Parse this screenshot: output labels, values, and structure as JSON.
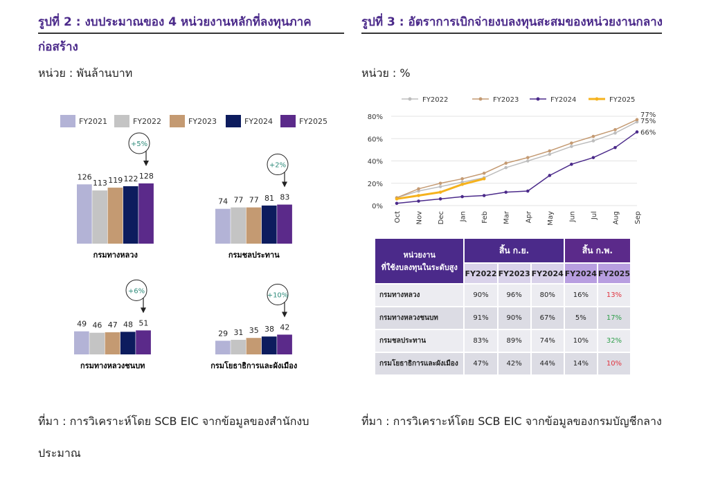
{
  "figure2": {
    "title": "รูปที่ 2 : งบประมาณของ 4 หน่วยงานหลักที่ลงทุนภาคก่อสร้าง",
    "unit": "หน่วย : พันล้านบาท",
    "chart_data": {
      "type": "bar",
      "series": [
        {
          "name": "FY2021",
          "color": "#b3b3d6"
        },
        {
          "name": "FY2022",
          "color": "#c4c4c4"
        },
        {
          "name": "FY2023",
          "color": "#c49a72"
        },
        {
          "name": "FY2024",
          "color": "#0d1c5e"
        },
        {
          "name": "FY2025",
          "color": "#5b2a8a"
        }
      ],
      "panels": [
        {
          "category": "กรมทางหลวง",
          "values": [
            126,
            113,
            119,
            122,
            128
          ],
          "change": "+5%"
        },
        {
          "category": "กรมชลประทาน",
          "values": [
            74,
            77,
            77,
            81,
            83
          ],
          "change": "+2%"
        },
        {
          "category": "กรมทางหลวงชนบท",
          "values": [
            49,
            46,
            47,
            48,
            51
          ],
          "change": "+6%"
        },
        {
          "category": "กรมโยธาธิการและผังเมือง",
          "values": [
            29,
            31,
            35,
            38,
            42
          ],
          "change": "+10%"
        }
      ]
    },
    "source": "ที่มา : การวิเคราะห์โดย SCB EIC จากข้อมูลของสำนักงบประมาณ"
  },
  "figure3": {
    "title": "รูปที่ 3 : อัตราการเบิกจ่ายงบลงทุนสะสมของหน่วยงานกลาง",
    "unit": "หน่วย : %",
    "chart_data": {
      "type": "line",
      "categories": [
        "Oct",
        "Nov",
        "Dec",
        "Jan",
        "Feb",
        "Mar",
        "Apr",
        "May",
        "Jun",
        "Jul",
        "Aug",
        "Sep"
      ],
      "series": [
        {
          "name": "FY2022",
          "color": "#bdbdbd",
          "values": [
            7,
            13,
            17,
            21,
            25,
            34,
            40,
            46,
            53,
            58,
            65,
            75
          ],
          "value_labels": [
            null,
            null,
            null,
            null,
            null,
            null,
            null,
            null,
            null,
            null,
            null,
            "75%"
          ]
        },
        {
          "name": "FY2023",
          "color": "#c49a72",
          "values": [
            7,
            15,
            20,
            24,
            29,
            38,
            43,
            49,
            56,
            62,
            68,
            77
          ],
          "value_labels": [
            null,
            null,
            null,
            null,
            null,
            null,
            null,
            null,
            null,
            null,
            null,
            "77%"
          ]
        },
        {
          "name": "FY2024",
          "color": "#4b2a8a",
          "values": [
            2,
            4,
            6,
            8,
            9,
            12,
            13,
            27,
            37,
            43,
            52,
            66
          ],
          "value_labels": [
            null,
            null,
            null,
            null,
            null,
            null,
            null,
            null,
            null,
            null,
            null,
            "66%"
          ]
        },
        {
          "name": "FY2025",
          "color": "#f5b21d",
          "values": [
            6,
            9,
            12,
            19,
            24,
            null,
            null,
            null,
            null,
            null,
            null,
            null
          ],
          "value_labels": [
            null,
            null,
            null,
            null,
            null,
            null,
            null,
            null,
            null,
            null,
            null,
            null
          ]
        }
      ],
      "ylim": [
        0,
        80
      ],
      "yticks": [
        {
          "value": 0,
          "label": "0%"
        },
        {
          "value": 20,
          "label": "20%"
        },
        {
          "value": 40,
          "label": "40%"
        },
        {
          "value": 60,
          "label": "60%"
        },
        {
          "value": 80,
          "label": "80%"
        }
      ],
      "grid": true
    },
    "table": {
      "header": [
        "หน่วยงาน",
        "ที่ใช้งบลงทุนในระดับสูง"
      ],
      "groups": [
        "สิ้น ก.ย.",
        "สิ้น ก.พ."
      ],
      "columns": [
        "FY2022",
        "FY2023",
        "FY2024",
        "FY2024",
        "FY2025"
      ],
      "rows": [
        [
          "กรมทางหลวง",
          "90%",
          "96%",
          "80%",
          "16%",
          "13%"
        ],
        [
          "กรมทางหลวงชนบท",
          "91%",
          "90%",
          "67%",
          "5%",
          "17%"
        ],
        [
          "กรมชลประทาน",
          "83%",
          "89%",
          "74%",
          "10%",
          "32%"
        ],
        [
          "กรมโยธาธิการและผังเมือง",
          "47%",
          "42%",
          "44%",
          "14%",
          "10%"
        ]
      ],
      "last_column_colors": [
        "#e0343f",
        "#2e9e4a",
        "#2e9e4a",
        "#e0343f"
      ]
    },
    "source": "ที่มา : การวิเคราะห์โดย SCB EIC จากข้อมูลของกรมบัญชีกลาง"
  }
}
